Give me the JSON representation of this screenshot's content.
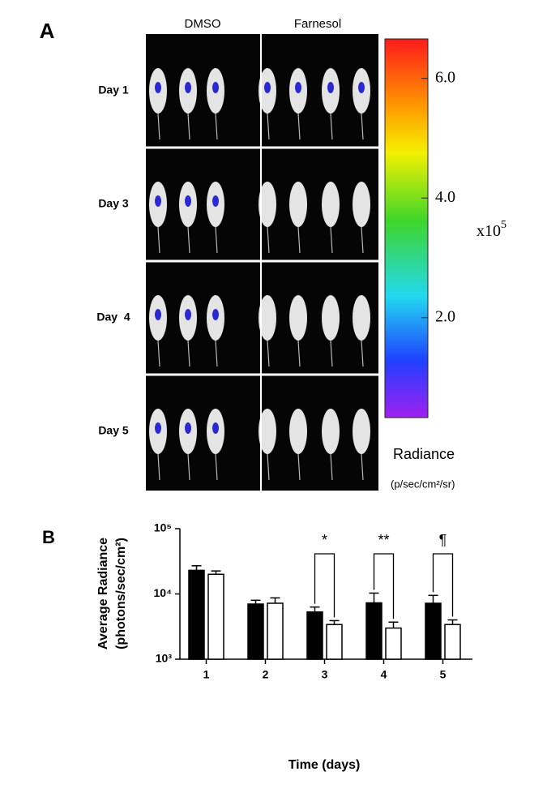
{
  "panel_a": {
    "label": "A",
    "columns": [
      "DMSO",
      "Farnesol"
    ],
    "rows": [
      "Day 1",
      "Day 3",
      "Day  4",
      "Day 5"
    ],
    "colorbar": {
      "lim": [
        0.33,
        6.66
      ],
      "ticks": [
        {
          "value": 6,
          "label": "6.0"
        },
        {
          "value": 4,
          "label": "4.0"
        },
        {
          "value": 2,
          "label": "2.0"
        }
      ],
      "multiplier": "x10",
      "exponent": "5",
      "title": "Radiance",
      "unit": "(p/sec/cm²/sr)"
    }
  },
  "chart_data": {
    "type": "bar",
    "panel_label": "B",
    "x_label": "Time (days)",
    "y_label": [
      "Average Radiance",
      "(photons/sec/cm²)"
    ],
    "categories": [
      "1",
      "2",
      "3",
      "4",
      "5"
    ],
    "series": [
      {
        "color": "#000000",
        "values": [
          23000,
          7000,
          5300,
          7300,
          7200
        ],
        "errors": [
          4000,
          1000,
          1000,
          3000,
          2300
        ]
      },
      {
        "color": "#ffffff",
        "values": [
          20000,
          7200,
          3400,
          3000,
          3400
        ],
        "errors": [
          2500,
          1500,
          500,
          700,
          600
        ]
      }
    ],
    "significance": [
      null,
      null,
      "*",
      "**",
      "¶"
    ],
    "log_scale": true,
    "ylim": [
      1000,
      100000
    ],
    "yticks": [
      {
        "value": 1000,
        "label": "10³"
      },
      {
        "value": 10000,
        "label": "10⁴"
      },
      {
        "value": 100000,
        "label": "10⁵"
      }
    ]
  }
}
